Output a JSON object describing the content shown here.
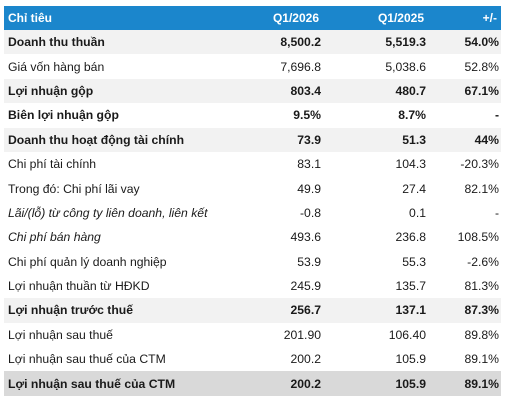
{
  "header": {
    "label": "Chỉ tiêu",
    "col1": "Q1/2026",
    "col2": "Q1/2025",
    "col3": "+/-"
  },
  "rows": [
    {
      "label": "Doanh thu thuần",
      "q1_2026": "8,500.2",
      "q1_2025": "5,519.3",
      "change": "54.0%",
      "style": "bold shade"
    },
    {
      "label": "Giá vốn hàng bán",
      "q1_2026": "7,696.8",
      "q1_2025": "5,038.6",
      "change": "52.8%",
      "style": ""
    },
    {
      "label": "Lợi nhuận gộp",
      "q1_2026": "803.4",
      "q1_2025": "480.7",
      "change": "67.1%",
      "style": "bold shade"
    },
    {
      "label": "Biên lợi nhuận gộp",
      "q1_2026": "9.5%",
      "q1_2025": "8.7%",
      "change": "-",
      "style": "bold"
    },
    {
      "label": "Doanh thu hoạt động tài chính",
      "q1_2026": "73.9",
      "q1_2025": "51.3",
      "change": "44%",
      "style": "bold shade"
    },
    {
      "label": "Chi phí tài chính",
      "q1_2026": "83.1",
      "q1_2025": "104.3",
      "change": "-20.3%",
      "style": ""
    },
    {
      "label": "Trong đó: Chi phí lãi vay",
      "q1_2026": "49.9",
      "q1_2025": "27.4",
      "change": "82.1%",
      "style": ""
    },
    {
      "label": "Lãi/(lỗ) từ công ty liên doanh, liên kết",
      "q1_2026": "-0.8",
      "q1_2025": "0.1",
      "change": "-",
      "style": "italic"
    },
    {
      "label": "Chi phí bán hàng",
      "q1_2026": "493.6",
      "q1_2025": "236.8",
      "change": "108.5%",
      "style": "italic"
    },
    {
      "label": "Chi phí quản lý doanh nghiệp",
      "q1_2026": "53.9",
      "q1_2025": "55.3",
      "change": "-2.6%",
      "style": ""
    },
    {
      "label": "Lợi nhuận thuần từ HĐKD",
      "q1_2026": "245.9",
      "q1_2025": "135.7",
      "change": "81.3%",
      "style": ""
    },
    {
      "label": "Lợi nhuận trước thuế",
      "q1_2026": "256.7",
      "q1_2025": "137.1",
      "change": "87.3%",
      "style": "bold shade"
    },
    {
      "label": "Lợi nhuận sau thuế",
      "q1_2026": "201.90",
      "q1_2025": "106.40",
      "change": "89.8%",
      "style": ""
    },
    {
      "label": "Lợi nhuận sau thuế của CTM",
      "q1_2026": "200.2",
      "q1_2025": "105.9",
      "change": "89.1%",
      "style": ""
    },
    {
      "label": "Lợi nhuận sau thuế của CTM",
      "q1_2026": "200.2",
      "q1_2025": "105.9",
      "change": "89.1%",
      "style": "bold shade-dark"
    }
  ],
  "colors": {
    "header_bg": "#1b86cc",
    "row_shade": "#f2f2f2",
    "row_shade_dark": "#d9d9d9"
  }
}
